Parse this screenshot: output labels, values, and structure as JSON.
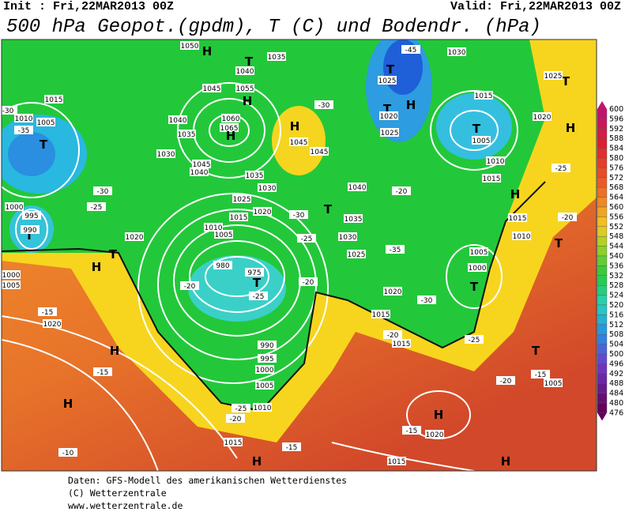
{
  "header": {
    "init": "Init : Fri,22MAR2013 00Z",
    "valid": "Valid: Fri,22MAR2013 00Z",
    "title": "500 hPa Geopot.(gpdm), T (C) und Bodendr. (hPa)"
  },
  "map": {
    "labels": [
      "H",
      "T",
      "1035",
      "1050",
      "1040",
      "1045",
      "1055",
      "H",
      "1060",
      "1065",
      "H",
      "1040",
      "1035",
      "1030",
      "1045",
      "1040",
      "1035",
      "1030",
      "1025",
      "1020",
      "1015",
      "1010",
      "1005",
      "975",
      "T",
      "980",
      "-20",
      "-25",
      "990",
      "995",
      "1000",
      "1005",
      "1010",
      "H",
      "1045",
      "1045",
      "T",
      "-45",
      "1025",
      "T",
      "H",
      "1020",
      "1025",
      "1030",
      "1015",
      "T",
      "1005",
      "1010",
      "1015",
      "T",
      "H",
      "1020",
      "1025",
      "-25",
      "T",
      "-35",
      "1015",
      "1005",
      "1010",
      "-30",
      "T",
      "995",
      "990",
      "1000",
      "-30",
      "-25",
      "1020",
      "H",
      "T",
      "1000",
      "1005",
      "-15",
      "1020",
      "H",
      "-15",
      "H",
      "-10",
      "H",
      "1020",
      "-15",
      "H",
      "1015",
      "H",
      "T",
      "1005",
      "-15",
      "T",
      "T",
      "-20",
      "1000",
      "1005",
      "1010",
      "1015",
      "H",
      "1020",
      "-30",
      "1015",
      "-20",
      "1015",
      "T",
      "1035",
      "1030",
      "1025",
      "-35",
      "-30",
      "-25",
      "-20",
      "1040",
      "-30",
      "-20",
      "-20",
      "-25",
      "-20",
      "-15",
      "1015",
      "-25"
    ]
  },
  "colorbar": {
    "labels": [
      600,
      596,
      592,
      588,
      584,
      580,
      576,
      572,
      568,
      564,
      560,
      556,
      552,
      548,
      544,
      540,
      536,
      532,
      528,
      524,
      520,
      516,
      512,
      508,
      504,
      500,
      496,
      492,
      488,
      484,
      480,
      476
    ]
  },
  "footer": {
    "lines": [
      "Daten: GFS-Modell des amerikanischen Wetterdienstes",
      "(C) Wetterzentrale",
      "www.wetterzentrale.de"
    ]
  }
}
